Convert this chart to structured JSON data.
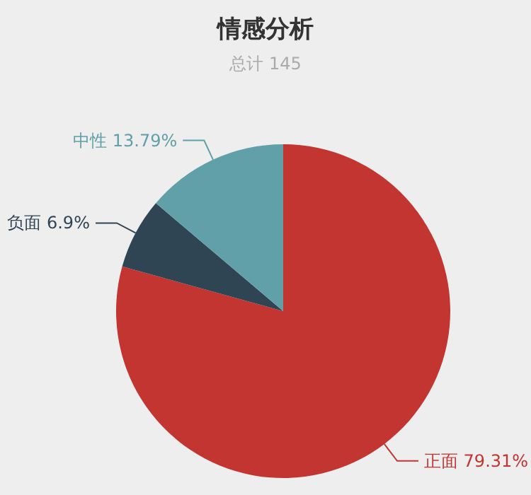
{
  "chart_data": {
    "type": "pie",
    "title": "情感分析",
    "subtitle": "总计 145",
    "categories": [
      "正面",
      "负面",
      "中性"
    ],
    "values": [
      79.31,
      6.9,
      13.79
    ],
    "value_labels": [
      "79.31%",
      "6.9%",
      "13.79%"
    ],
    "colors": [
      "#c23531",
      "#2f4554",
      "#61a0a8"
    ]
  }
}
